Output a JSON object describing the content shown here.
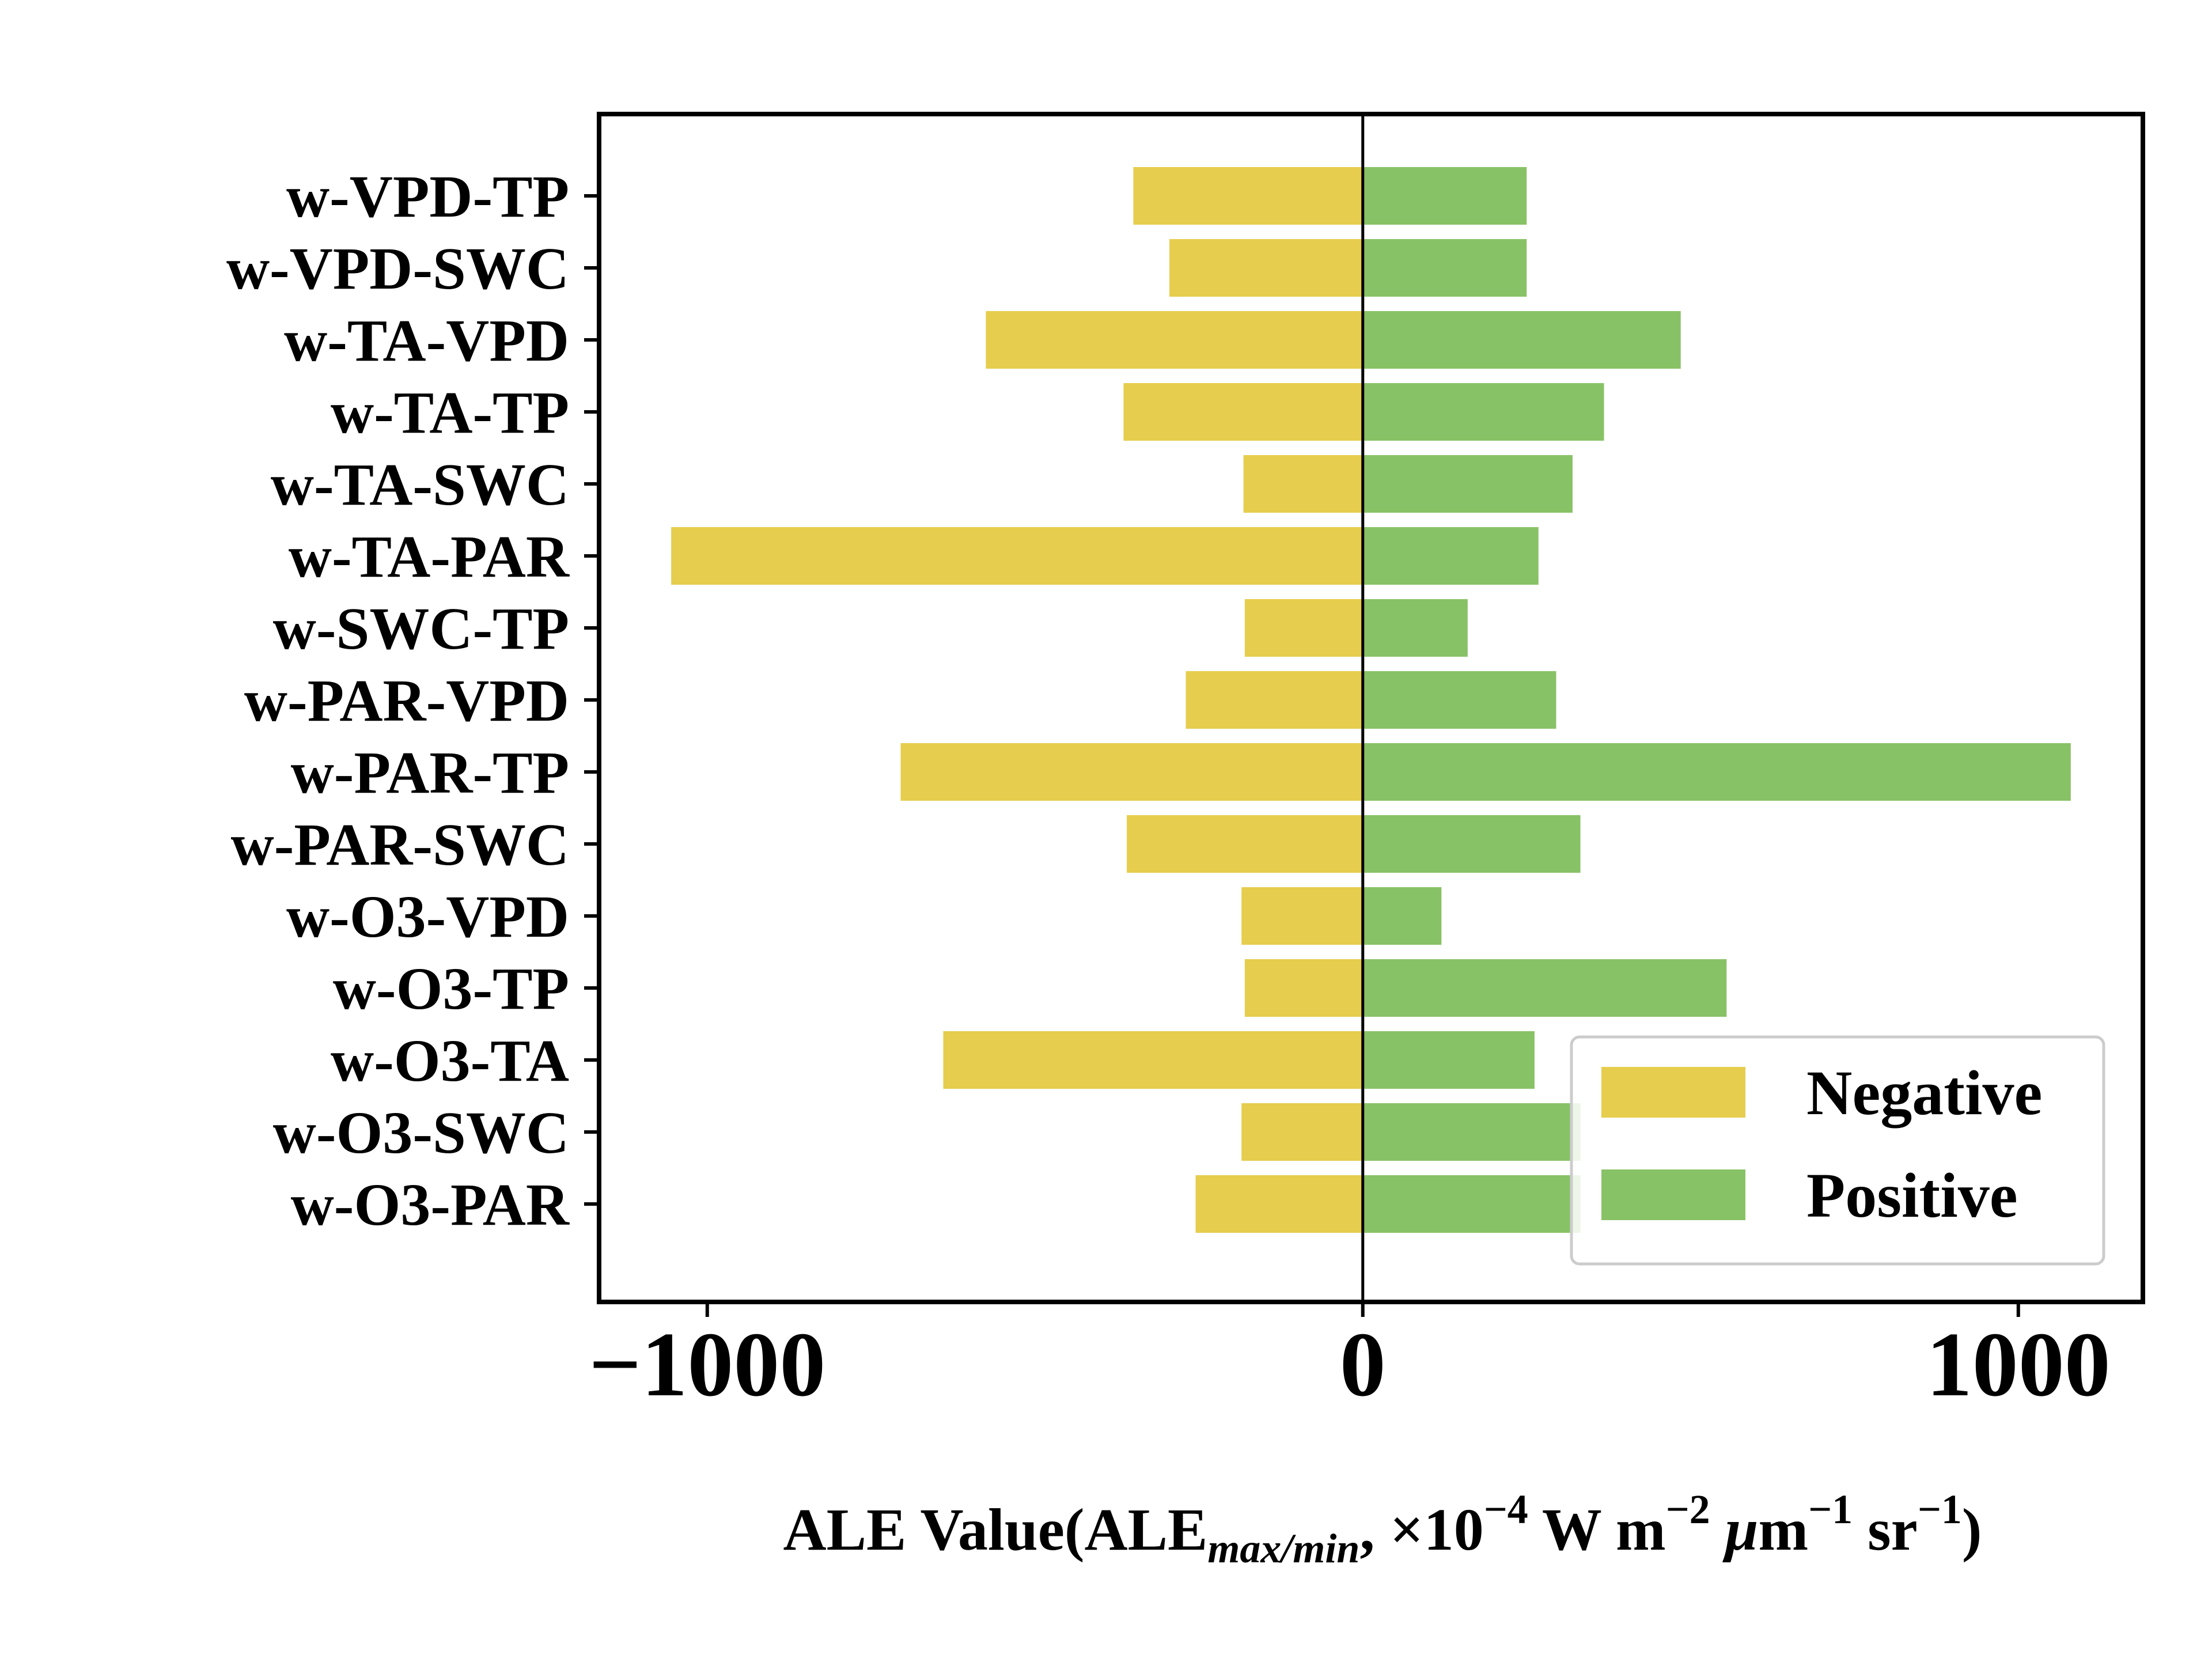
{
  "chart_data": {
    "type": "bar",
    "orientation": "horizontal",
    "categories": [
      "w-VPD-TP",
      "w-VPD-SWC",
      "w-TA-VPD",
      "w-TA-TP",
      "w-TA-SWC",
      "w-TA-PAR",
      "w-SWC-TP",
      "w-PAR-VPD",
      "w-PAR-TP",
      "w-PAR-SWC",
      "w-O3-VPD",
      "w-O3-TP",
      "w-O3-TA",
      "w-O3-SWC",
      "w-O3-PAR"
    ],
    "series": [
      {
        "name": "Negative",
        "color": "#e6cd4d",
        "values": [
          -350,
          -295,
          -575,
          -365,
          -182,
          -1055,
          -180,
          -270,
          -705,
          -360,
          -185,
          -180,
          -640,
          -185,
          -255
        ]
      },
      {
        "name": "Positive",
        "color": "#88c266",
        "values": [
          250,
          250,
          485,
          368,
          320,
          268,
          160,
          295,
          1080,
          332,
          120,
          555,
          262,
          332,
          332
        ]
      }
    ],
    "xticks": [
      "−1000",
      "0",
      "1000"
    ],
    "xtick_values": [
      -1000,
      0,
      1000
    ],
    "xlim": [
      -1165,
      1190
    ],
    "xlabel": {
      "prefix": "ALE Value(ALE",
      "subscript": "max/min",
      "middle": ", ×10",
      "exp1": "−4",
      "unit1": " W m",
      "exp2": "−2",
      "mu": " μ",
      "unit2": "m",
      "exp3": "−1",
      "unit3": " sr",
      "exp4": "−1",
      "suffix": ")"
    },
    "legend": {
      "position": "bottom-right"
    },
    "zero_line": true,
    "grid": false
  }
}
